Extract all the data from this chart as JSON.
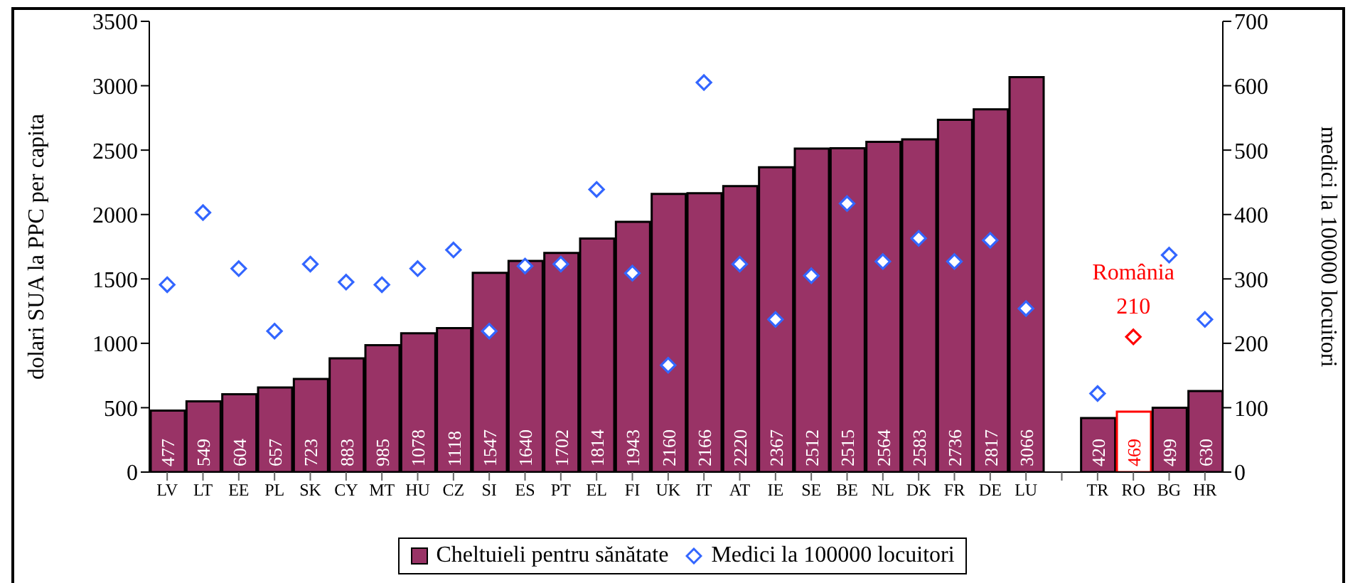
{
  "chart_data": {
    "type": "bar",
    "ylabel": "dolari SUA la PPC per capita",
    "y2label": "medici la 100000 locuitori",
    "categories": [
      "LV",
      "LT",
      "EE",
      "PL",
      "SK",
      "CY",
      "MT",
      "HU",
      "CZ",
      "SI",
      "ES",
      "PT",
      "EL",
      "FI",
      "UK",
      "IT",
      "AT",
      "IE",
      "SE",
      "BE",
      "NL",
      "DK",
      "FR",
      "DE",
      "LU",
      null,
      "TR",
      "RO",
      "BG",
      "HR"
    ],
    "series": [
      {
        "name": "Cheltuieli pentru sănătate",
        "color": "#993366",
        "colors": [
          "#993366",
          "#993366",
          "#993366",
          "#993366",
          "#993366",
          "#993366",
          "#993366",
          "#993366",
          "#993366",
          "#993366",
          "#993366",
          "#993366",
          "#993366",
          "#993366",
          "#993366",
          "#993366",
          "#993366",
          "#993366",
          "#993366",
          "#993366",
          "#993366",
          "#993366",
          "#993366",
          "#993366",
          "#993366",
          null,
          "#993366",
          "#ffffff",
          "#993366",
          "#993366"
        ],
        "values": [
          477,
          549,
          604,
          657,
          723,
          883,
          985,
          1078,
          1118,
          1547,
          1640,
          1702,
          1814,
          1943,
          2160,
          2166,
          2220,
          2367,
          2512,
          2515,
          2564,
          2583,
          2736,
          2817,
          3066,
          null,
          420,
          469,
          499,
          630
        ],
        "data_labels": true
      },
      {
        "name": "Medici la 100000 locuitori",
        "type": "scatter",
        "axis": "y2",
        "marker": "diamond",
        "color": "#3366ff",
        "colors": [
          "#3366ff",
          "#3366ff",
          "#3366ff",
          "#3366ff",
          "#3366ff",
          "#3366ff",
          "#3366ff",
          "#3366ff",
          "#3366ff",
          "#3366ff",
          "#3366ff",
          "#3366ff",
          "#3366ff",
          "#3366ff",
          "#3366ff",
          "#3366ff",
          "#3366ff",
          "#3366ff",
          "#3366ff",
          "#3366ff",
          "#3366ff",
          "#3366ff",
          "#3366ff",
          "#3366ff",
          "#3366ff",
          null,
          "#3366ff",
          "#ff0000",
          "#3366ff",
          "#3366ff"
        ],
        "values": [
          291,
          403,
          316,
          219,
          323,
          295,
          291,
          316,
          345,
          219,
          320,
          323,
          439,
          309,
          166,
          605,
          323,
          237,
          305,
          417,
          327,
          363,
          327,
          360,
          254,
          null,
          122,
          210,
          337,
          237
        ],
        "value_labels": [
          null,
          null,
          null,
          null,
          null,
          null,
          null,
          null,
          null,
          null,
          null,
          null,
          null,
          null,
          null,
          null,
          null,
          null,
          null,
          null,
          null,
          null,
          null,
          null,
          null,
          null,
          null,
          "210",
          null,
          null
        ]
      }
    ],
    "annotations": [
      "România"
    ],
    "ylim": [
      0,
      3500
    ],
    "yticks": [
      0,
      500,
      1000,
      1500,
      2000,
      2500,
      3000,
      3500
    ],
    "y2lim": [
      0,
      700
    ],
    "y2ticks": [
      0,
      100,
      200,
      300,
      400,
      500,
      600,
      700
    ],
    "grid": false,
    "legend": "bottom"
  }
}
